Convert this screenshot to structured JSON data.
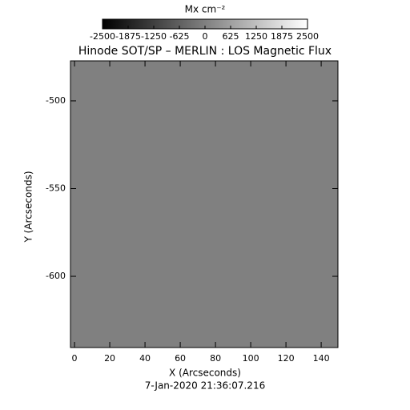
{
  "chart_data": {
    "type": "image",
    "title": "Hinode SOT/SP – MERLIN : LOS Magnetic Flux",
    "x_label": "X (Arcseconds)",
    "y_label": "Y (Arcseconds)",
    "caption": "7-Jan-2020 21:36:07.216",
    "xlim": [
      -2.3,
      149.5
    ],
    "xticks": [
      0,
      20,
      40,
      60,
      80,
      100,
      120,
      140
    ],
    "ylim": [
      -640.6,
      -477.2
    ],
    "yticks": [
      -600,
      -550,
      -500
    ],
    "colorbar": {
      "label": "Mx cm⁻²",
      "lim": [
        -2500,
        2500
      ],
      "ticks": [
        -2500,
        -1875,
        -1250,
        -625,
        0,
        625,
        1250,
        1875,
        2500
      ],
      "colors": [
        "#000000",
        "#ffffff"
      ]
    }
  }
}
